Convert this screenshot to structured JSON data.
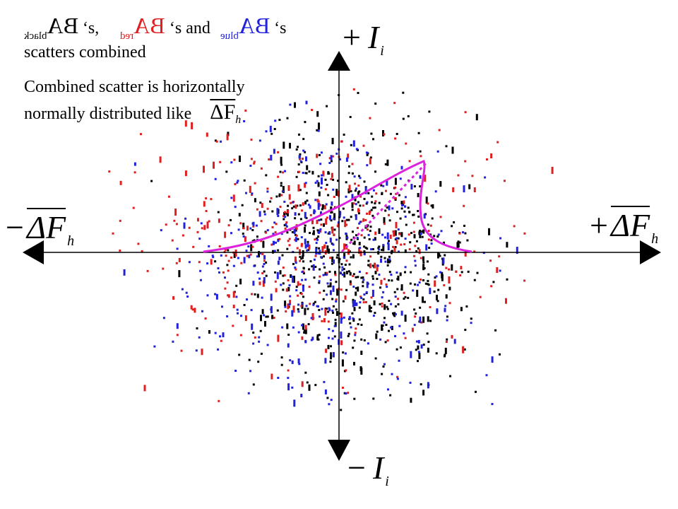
{
  "header": {
    "ba_label": "BA",
    "black_sub": "black",
    "red_sub": "red",
    "blue_sub": "blue",
    "sep1": "‘s,",
    "sep2": "‘s and",
    "sep3": "‘s",
    "line2": "scatters combined",
    "line3": "Combined scatter is horizontally",
    "line4": "normally distributed like",
    "formula_inline": "ΔF",
    "formula_inline_sub": "h"
  },
  "axes": {
    "top_sign": "+",
    "top_var": "I",
    "top_sub": "i",
    "bottom_sign": "−",
    "bottom_var": "I",
    "bottom_sub": "i",
    "left_sign": "−",
    "left_var": "ΔF",
    "left_sub": "h",
    "right_sign": "+",
    "right_var": "ΔF",
    "right_sub": "h"
  },
  "colors": {
    "black_series": "#000000",
    "red_series": "#e02020",
    "blue_series": "#2222dd",
    "curve": "#dd22dd",
    "axis": "#000000"
  }
}
